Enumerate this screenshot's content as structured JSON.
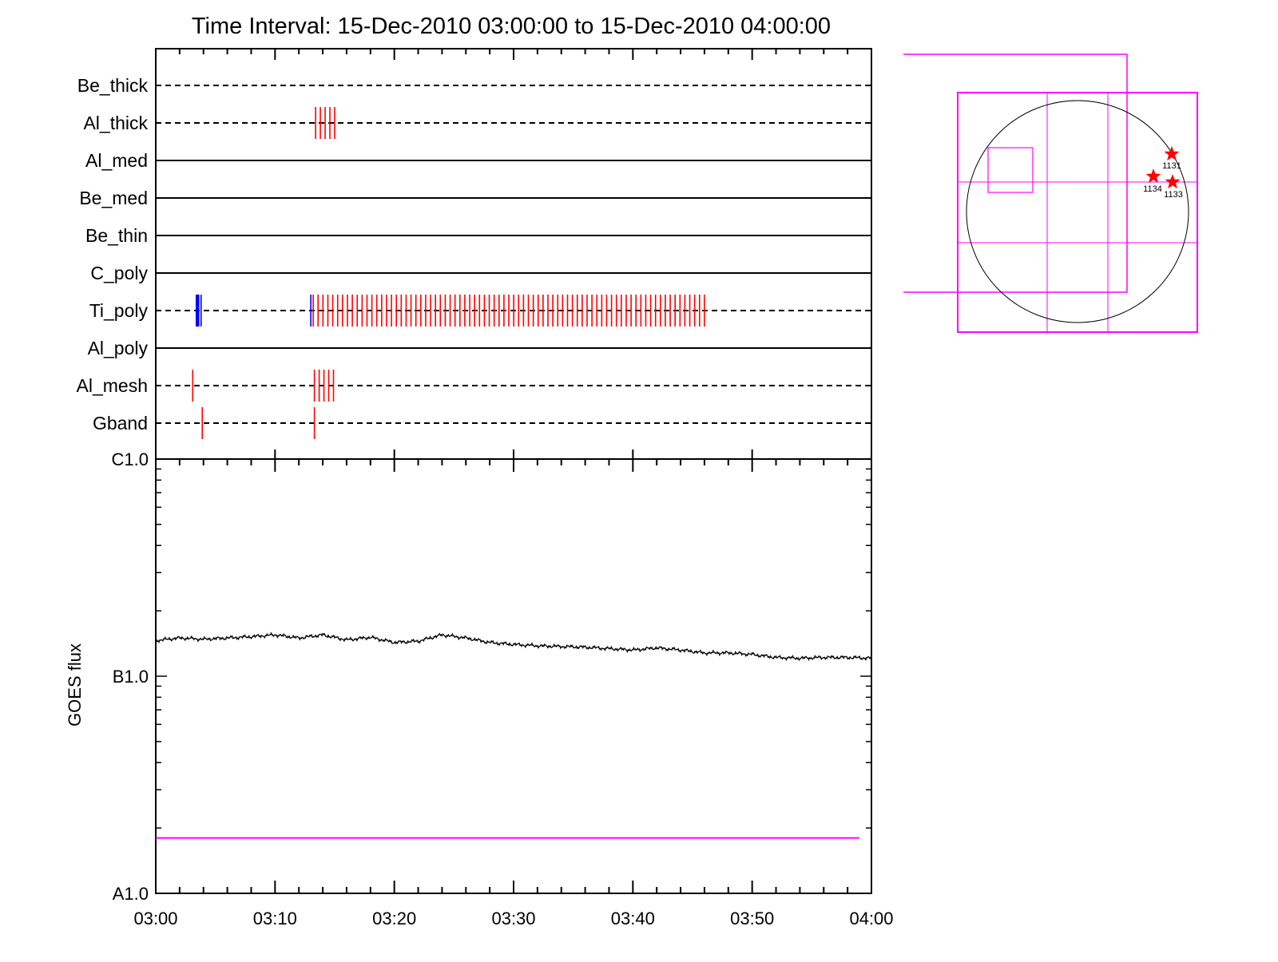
{
  "chart_data": [
    {
      "type": "event-raster",
      "title": "Time Interval: 15-Dec-2010 03:00:00 to 15-Dec-2010 04:00:00",
      "x_range_minutes": [
        0,
        60
      ],
      "channels": [
        {
          "label": "Be_thick",
          "style": "dashed",
          "events": []
        },
        {
          "label": "Al_thick",
          "style": "dashed",
          "events": [
            {
              "t": [
                13.4,
                13.8,
                14.2,
                14.6,
                15.0
              ],
              "color": "#ff0000"
            }
          ]
        },
        {
          "label": "Al_med",
          "style": "solid",
          "events": []
        },
        {
          "label": "Be_med",
          "style": "solid",
          "events": []
        },
        {
          "label": "Be_thin",
          "style": "solid",
          "events": []
        },
        {
          "label": "C_poly",
          "style": "solid",
          "events": []
        },
        {
          "label": "Ti_poly",
          "style": "dashed",
          "events": [
            {
              "t": [
                3.4,
                3.5,
                3.6
              ],
              "color": "#0000ff"
            },
            {
              "t": [
                3.8
              ],
              "color": "#0000ff"
            },
            {
              "t": [
                13.0
              ],
              "color": "#0000ff"
            },
            {
              "range": [
                13.2,
                46.2
              ],
              "step": 0.41,
              "color": "#ff0000"
            }
          ]
        },
        {
          "label": "Al_poly",
          "style": "solid",
          "events": []
        },
        {
          "label": "Al_mesh",
          "style": "dashed",
          "events": [
            {
              "t": [
                3.1,
                13.3,
                13.7,
                14.1,
                14.5,
                14.9
              ],
              "color": "#ff0000"
            }
          ]
        },
        {
          "label": "Gband",
          "style": "dashed",
          "events": [
            {
              "t": [
                3.9,
                13.3
              ],
              "color": "#ff0000"
            }
          ]
        }
      ]
    },
    {
      "type": "line",
      "ylabel": "GOES flux",
      "x_tick_labels": [
        "03:00",
        "03:10",
        "03:20",
        "03:30",
        "03:40",
        "03:50",
        "04:00"
      ],
      "x_ticks_minutes": [
        0,
        10,
        20,
        30,
        40,
        50,
        60
      ],
      "y_scale": "log",
      "y_range_flux": [
        1e-08,
        1e-06
      ],
      "y_tick_labels": [
        {
          "label": "C1.0",
          "value": 1e-06
        },
        {
          "label": "B1.0",
          "value": 1e-07
        },
        {
          "label": "A1.0",
          "value": 1e-08
        }
      ],
      "series": [
        {
          "color": "#000000",
          "x": [
            0,
            2,
            4,
            6,
            8,
            10,
            12,
            14,
            16,
            18,
            20,
            22,
            24,
            26,
            28,
            30,
            32,
            34,
            36,
            38,
            40,
            42,
            44,
            46,
            48,
            50,
            52,
            54,
            56,
            58,
            60
          ],
          "y": [
            1.46e-07,
            1.5e-07,
            1.48e-07,
            1.5e-07,
            1.52e-07,
            1.55e-07,
            1.5e-07,
            1.55e-07,
            1.47e-07,
            1.51e-07,
            1.43e-07,
            1.45e-07,
            1.55e-07,
            1.5e-07,
            1.43e-07,
            1.4e-07,
            1.38e-07,
            1.37e-07,
            1.36e-07,
            1.34e-07,
            1.32e-07,
            1.35e-07,
            1.32e-07,
            1.28e-07,
            1.28e-07,
            1.26e-07,
            1.22e-07,
            1.21e-07,
            1.22e-07,
            1.22e-07,
            1.21e-07
          ]
        },
        {
          "color": "#ff00ff",
          "x": [
            0,
            59
          ],
          "y": [
            1.8e-08,
            1.8e-08
          ]
        }
      ]
    }
  ],
  "sun_map": {
    "line_color": "#ff00ff",
    "star_color": "#ff0000",
    "active_regions": [
      {
        "label": "1131"
      },
      {
        "label": "1134"
      },
      {
        "label": "1133"
      }
    ]
  }
}
